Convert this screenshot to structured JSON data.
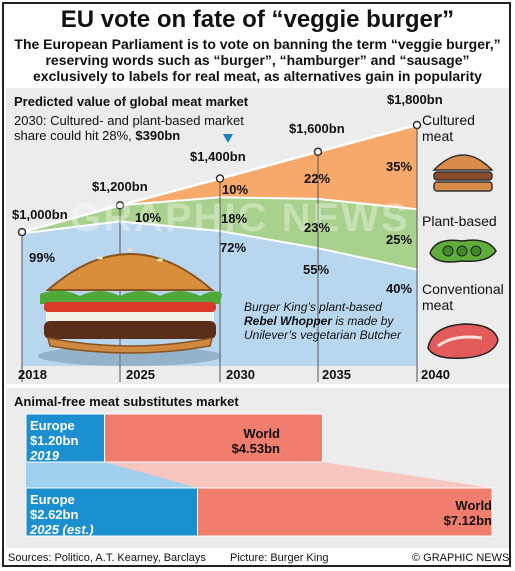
{
  "title": "EU vote on fate of “veggie burger”",
  "subtitle": "The European Parliament is to vote on banning the term “veggie burger,” reserving words such as “burger”, “hamburger” and “sausage” exclusively to labels for real meat, as alternatives gain in popularity",
  "section1_title": "Predicted value of global meat market",
  "note_line1": "2030: Cultured- and plant-based market",
  "note_line2": "share could hit 28%,",
  "note_value": "$390bn",
  "caption_line1": "Burger King’s plant-based",
  "caption_bold": "Rebel Whopper",
  "caption_line2": "is made by Unilever’s vegetarian Butcher",
  "categories": {
    "cultured": "Cultured meat",
    "plant": "Plant-based",
    "conventional": "Conventional meat"
  },
  "section2_title": "Animal-free meat substitutes market",
  "footer": {
    "sources": "Sources: Politico, A.T. Kearney, Barclays",
    "picture": "Picture: Burger King",
    "credit": "© GRAPHIC NEWS"
  },
  "watermark": "GRAPHIC NEWS",
  "colors": {
    "cultured": "#f6a96a",
    "plant": "#a9d18e",
    "conventional": "#b9d6ef",
    "europe": "#1b8fd0",
    "world": "#f07d6e",
    "accent": "#1d7fc1"
  },
  "chart_data": [
    {
      "type": "area",
      "stacked": true,
      "x": [
        2018,
        2025,
        2030,
        2035,
        2040
      ],
      "x_tick_labels": [
        "2018",
        "2025",
        "2030",
        "2035",
        "2040"
      ],
      "total_labels": [
        "$1,000bn",
        "$1,200bn",
        "$1,400bn",
        "$1,600bn",
        "$1,800bn"
      ],
      "totals": [
        1000,
        1200,
        1400,
        1600,
        1800
      ],
      "series": [
        {
          "name": "Conventional meat",
          "share_labels": [
            "99%",
            "",
            "72%",
            "55%",
            "40%"
          ],
          "shares": [
            99,
            90,
            72,
            55,
            40
          ]
        },
        {
          "name": "Plant-based",
          "share_labels": [
            "",
            "10%",
            "18%",
            "23%",
            "25%"
          ],
          "shares": [
            1,
            10,
            18,
            23,
            25
          ]
        },
        {
          "name": "Cultured meat",
          "share_labels": [
            "",
            "",
            "10%",
            "22%",
            "35%"
          ],
          "shares": [
            0,
            0,
            10,
            22,
            35
          ]
        }
      ]
    },
    {
      "type": "bar",
      "title": "Animal-free meat substitutes market",
      "rows": [
        {
          "europe_label": "Europe",
          "europe_value_label": "$1.20bn",
          "europe_value": 1.2,
          "year": "2019",
          "world_label": "World",
          "world_value_label": "$4.53bn",
          "world_value": 4.53
        },
        {
          "europe_label": "Europe",
          "europe_value_label": "$2.62bn",
          "europe_value": 2.62,
          "year": "2025 (est.)",
          "world_label": "World",
          "world_value_label": "$7.12bn",
          "world_value": 7.12
        }
      ]
    }
  ]
}
